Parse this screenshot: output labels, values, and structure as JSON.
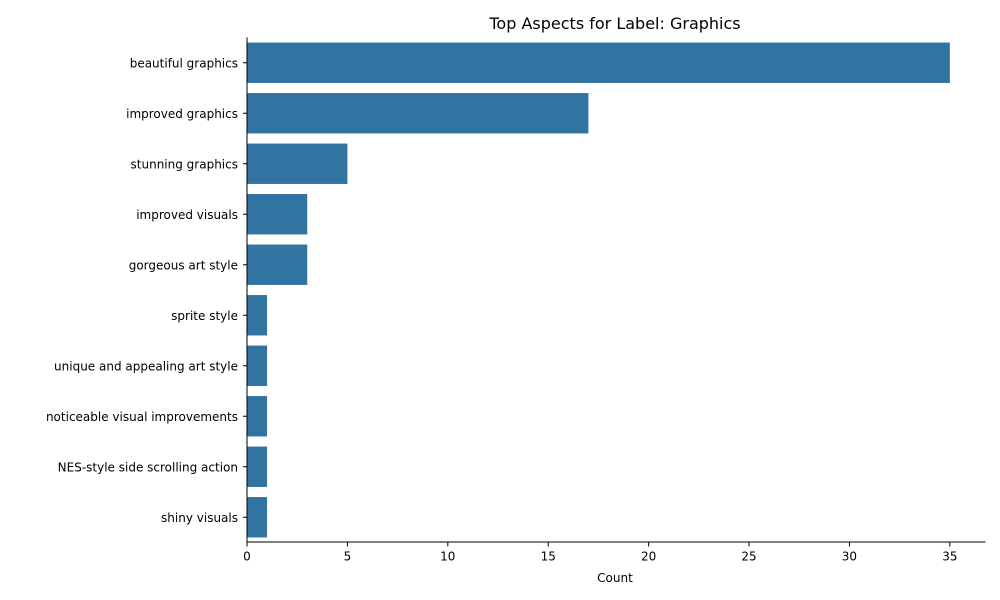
{
  "chart_data": {
    "type": "bar",
    "orientation": "horizontal",
    "title": "Top Aspects for Label: Graphics",
    "xlabel": "Count",
    "ylabel": "",
    "xlim": [
      0,
      36.75
    ],
    "xticks": [
      0,
      5,
      10,
      15,
      20,
      25,
      30,
      35
    ],
    "categories": [
      "beautiful graphics",
      "improved graphics",
      "stunning graphics",
      "improved visuals",
      "gorgeous art style",
      "sprite style",
      "unique and appealing art style",
      "noticeable visual improvements",
      "NES-style side scrolling action",
      "shiny visuals"
    ],
    "values": [
      35,
      17,
      5,
      3,
      3,
      1,
      1,
      1,
      1,
      1
    ],
    "bar_color": "#3274a1",
    "grid": false,
    "legend": "none"
  }
}
